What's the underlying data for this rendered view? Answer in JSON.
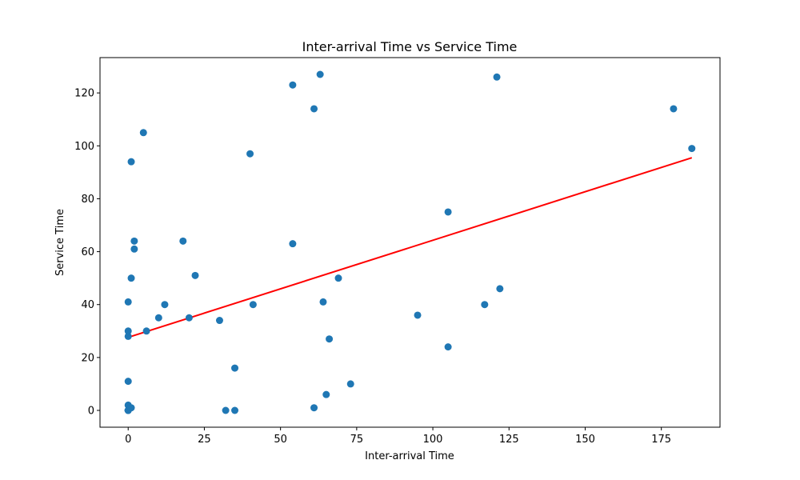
{
  "chart_data": {
    "type": "scatter",
    "title": "Inter-arrival Time vs Service Time",
    "xlabel": "Inter-arrival Time",
    "ylabel": "Service Time",
    "xlim": [
      -9.25,
      194.25
    ],
    "ylim": [
      -6.35,
      133.35
    ],
    "xticks": [
      0,
      25,
      50,
      75,
      100,
      125,
      150,
      175
    ],
    "yticks": [
      0,
      20,
      40,
      60,
      80,
      100,
      120
    ],
    "grid": false,
    "point_color": "#1f77b4",
    "line_color": "#ff0000",
    "points": [
      {
        "x": 0,
        "y": 0
      },
      {
        "x": 0,
        "y": 0
      },
      {
        "x": 0,
        "y": 0
      },
      {
        "x": 0,
        "y": 0
      },
      {
        "x": 0,
        "y": 2
      },
      {
        "x": 0,
        "y": 11
      },
      {
        "x": 0,
        "y": 28
      },
      {
        "x": 0,
        "y": 30
      },
      {
        "x": 0,
        "y": 41
      },
      {
        "x": 1,
        "y": 1
      },
      {
        "x": 1,
        "y": 50
      },
      {
        "x": 1,
        "y": 94
      },
      {
        "x": 2,
        "y": 61
      },
      {
        "x": 2,
        "y": 64
      },
      {
        "x": 5,
        "y": 105
      },
      {
        "x": 6,
        "y": 30
      },
      {
        "x": 10,
        "y": 35
      },
      {
        "x": 12,
        "y": 40
      },
      {
        "x": 18,
        "y": 64
      },
      {
        "x": 20,
        "y": 35
      },
      {
        "x": 22,
        "y": 51
      },
      {
        "x": 30,
        "y": 34
      },
      {
        "x": 32,
        "y": 0
      },
      {
        "x": 35,
        "y": 0
      },
      {
        "x": 35,
        "y": 16
      },
      {
        "x": 40,
        "y": 97
      },
      {
        "x": 41,
        "y": 40
      },
      {
        "x": 54,
        "y": 123
      },
      {
        "x": 54,
        "y": 63
      },
      {
        "x": 61,
        "y": 114
      },
      {
        "x": 61,
        "y": 1
      },
      {
        "x": 63,
        "y": 127
      },
      {
        "x": 64,
        "y": 41
      },
      {
        "x": 65,
        "y": 6
      },
      {
        "x": 66,
        "y": 27
      },
      {
        "x": 69,
        "y": 50
      },
      {
        "x": 73,
        "y": 10
      },
      {
        "x": 95,
        "y": 36
      },
      {
        "x": 105,
        "y": 75
      },
      {
        "x": 105,
        "y": 24
      },
      {
        "x": 117,
        "y": 40
      },
      {
        "x": 121,
        "y": 126
      },
      {
        "x": 122,
        "y": 46
      },
      {
        "x": 179,
        "y": 114
      },
      {
        "x": 185,
        "y": 99
      }
    ],
    "trendline": {
      "x0": 0,
      "y0": 27.6,
      "x1": 185,
      "y1": 95.5
    }
  }
}
